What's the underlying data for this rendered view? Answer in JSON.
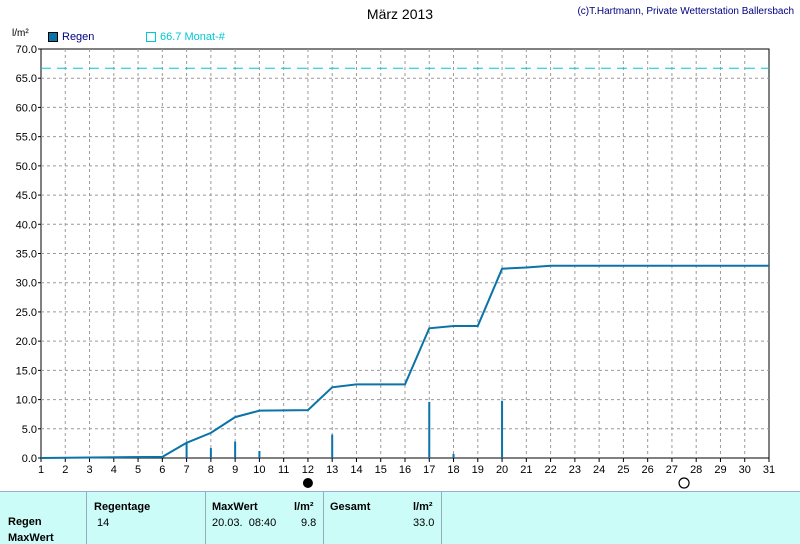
{
  "chart_data": {
    "type": "bar",
    "title": "März 2013",
    "ylabel": "l/m²",
    "ylim": [
      0,
      70
    ],
    "xlim": [
      1,
      31
    ],
    "x_ticks": [
      1,
      2,
      3,
      4,
      5,
      6,
      7,
      8,
      9,
      10,
      11,
      12,
      13,
      14,
      15,
      16,
      17,
      18,
      19,
      20,
      21,
      22,
      23,
      24,
      25,
      26,
      27,
      28,
      29,
      30,
      31
    ],
    "y_ticks": [
      "0.0",
      "5.0",
      "10.0",
      "15.0",
      "20.0",
      "25.0",
      "30.0",
      "35.0",
      "40.0",
      "45.0",
      "50.0",
      "55.0",
      "60.0",
      "65.0",
      "70.0"
    ],
    "grid": true,
    "series": [
      {
        "name": "Regen",
        "type": "bar",
        "color": "#0a73a8",
        "x": [
          7,
          8,
          9,
          10,
          13,
          17,
          18,
          20
        ],
        "values": [
          2.5,
          1.7,
          2.8,
          1.2,
          4.0,
          9.6,
          0.7,
          9.8
        ]
      },
      {
        "name": "",
        "type": "line",
        "color": "#0a73a8",
        "x": [
          1,
          6,
          7,
          8,
          9,
          10,
          12,
          13,
          14,
          16,
          17,
          18,
          19,
          20,
          21,
          22,
          31
        ],
        "values": [
          0.0,
          0.2,
          2.6,
          4.3,
          7.0,
          8.1,
          8.2,
          12.1,
          12.6,
          12.6,
          22.2,
          22.6,
          22.6,
          32.4,
          32.6,
          32.9,
          32.9
        ]
      },
      {
        "name": "66.7 Monat-#",
        "type": "reference",
        "color": "#00c8d0",
        "value": 66.7
      }
    ],
    "moon_phases": [
      {
        "x": 12,
        "phase": "new-moon"
      },
      {
        "x": 27.5,
        "phase": "full-moon"
      }
    ]
  },
  "header": {
    "title": "März 2013",
    "copyright": "(c)T.Hartmann, Private Wetterstation Ballersbach",
    "unit": "l/m²"
  },
  "legend": {
    "regen": "Regen",
    "average": "66.7 Monat-#"
  },
  "summary": {
    "row_labels": [
      "Regen",
      "MaxWert"
    ],
    "regentage_header": "Regentage",
    "regentage_value": "14",
    "maxwert_header": "MaxWert",
    "maxwert_unit": "l/m²",
    "maxwert_date": "20.03.  08:40",
    "maxwert_value": "9.8",
    "gesamt_header": "Gesamt",
    "gesamt_unit": "l/m²",
    "gesamt_value": "33.0"
  },
  "colors": {
    "bar": "#0a73a8",
    "cumulative": "#0a73a8",
    "reference": "#00c8d0",
    "grid": "#9a9a9a",
    "panel": "#ccfcf8"
  }
}
